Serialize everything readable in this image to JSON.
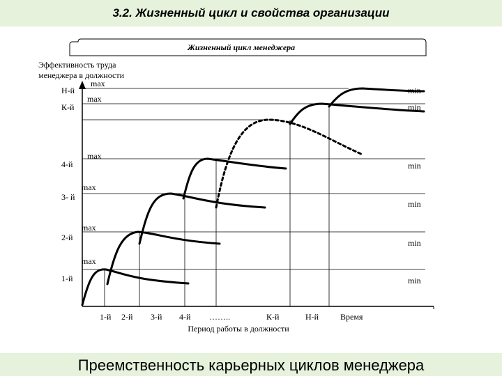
{
  "header": {
    "title": "3.2. Жизненный цикл и свойства организации"
  },
  "diagram": {
    "title": "Жизненный цикл менеджера",
    "y_axis_label": [
      "Эффективность труда",
      "менеджера в должности"
    ],
    "levels": [
      "Н-й",
      "К-й",
      "4-й",
      "3- й",
      "2-й",
      "1-й"
    ],
    "max_labels": [
      "max",
      "max",
      "max",
      "max",
      "max",
      "max"
    ],
    "min_labels": [
      "min",
      "min",
      "min",
      "min",
      "min",
      "min"
    ],
    "x_labels": [
      "1-й",
      "2-й",
      "3-й",
      "4-й",
      "……..",
      "К-й",
      "Н-й",
      "Время"
    ],
    "x_axis_title": "Период работы в должности"
  },
  "footer": {
    "caption": "Преемственность карьерных циклов менеджера"
  }
}
